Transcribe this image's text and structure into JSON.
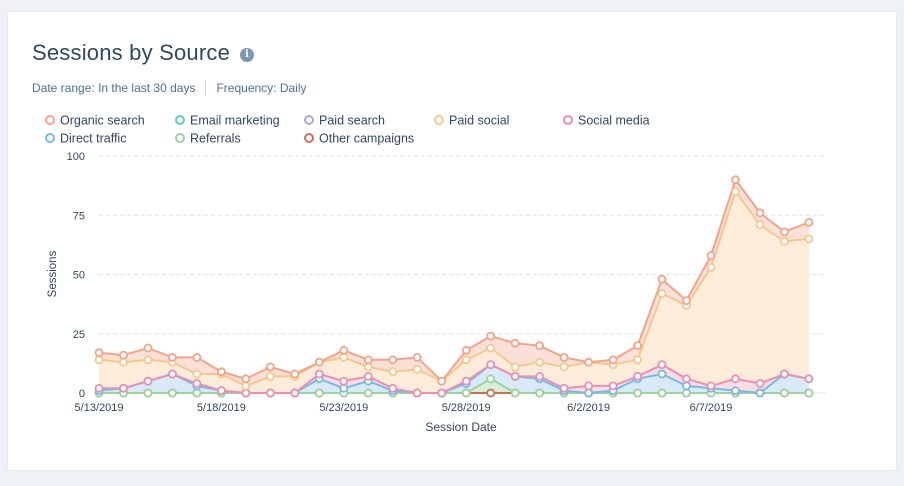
{
  "card": {
    "title": "Sessions by Source",
    "info_icon": "info-icon",
    "date_range_label": "Date range:",
    "date_range_value": "In the last 30 days",
    "frequency_label": "Frequency:",
    "frequency_value": "Daily"
  },
  "chart_data": {
    "type": "area",
    "stacked": true,
    "xlabel": "Session Date",
    "ylabel": "Sessions",
    "ylim": [
      0,
      100
    ],
    "yticks": [
      0,
      25,
      50,
      75,
      100
    ],
    "grid": true,
    "legend_position": "top-left",
    "x": [
      "5/13/2019",
      "5/14/2019",
      "5/15/2019",
      "5/16/2019",
      "5/17/2019",
      "5/18/2019",
      "5/19/2019",
      "5/20/2019",
      "5/21/2019",
      "5/22/2019",
      "5/23/2019",
      "5/24/2019",
      "5/25/2019",
      "5/26/2019",
      "5/27/2019",
      "5/28/2019",
      "5/29/2019",
      "5/30/2019",
      "5/31/2019",
      "6/1/2019",
      "6/2/2019",
      "6/3/2019",
      "6/4/2019",
      "6/5/2019",
      "6/6/2019",
      "6/7/2019",
      "6/8/2019",
      "6/9/2019",
      "6/10/2019",
      "6/11/2019"
    ],
    "xtick_labels": [
      "5/13/2019",
      "5/18/2019",
      "5/23/2019",
      "5/28/2019",
      "6/2/2019",
      "6/7/2019"
    ],
    "xtick_indices": [
      0,
      5,
      10,
      15,
      20,
      25
    ],
    "legend": [
      {
        "name": "Organic search",
        "color": "#f2a38c"
      },
      {
        "name": "Email marketing",
        "color": "#58cecb"
      },
      {
        "name": "Paid search",
        "color": "#b1a3d8"
      },
      {
        "name": "Paid social",
        "color": "#f2c892"
      },
      {
        "name": "Social media",
        "color": "#ea90b1"
      },
      {
        "name": "Direct traffic",
        "color": "#7cb8e6"
      },
      {
        "name": "Referrals",
        "color": "#9fd29e"
      },
      {
        "name": "Other campaigns",
        "color": "#c9705b"
      }
    ],
    "series": [
      {
        "name": "Other campaigns",
        "color": "#c9705b",
        "fill": "",
        "values": [
          0,
          0,
          0,
          0,
          0,
          0,
          0,
          0,
          0,
          0,
          0,
          0,
          0,
          0,
          0,
          0,
          0,
          0,
          0,
          0,
          0,
          0,
          0,
          0,
          0,
          0,
          0,
          0,
          0,
          0
        ]
      },
      {
        "name": "Referrals",
        "color": "#9fd29e",
        "fill": "#d7efd6",
        "values": [
          0,
          0,
          0,
          0,
          0,
          0,
          0,
          0,
          0,
          0,
          0,
          0,
          0,
          0,
          0,
          0,
          6,
          0,
          0,
          0,
          0,
          0,
          0,
          0,
          0,
          0,
          0,
          0,
          0,
          0
        ]
      },
      {
        "name": "Direct traffic",
        "color": "#7cb8e6",
        "fill": "#d8eaf8",
        "values": [
          1,
          2,
          5,
          8,
          3,
          1,
          0,
          0,
          0,
          6,
          2,
          5,
          1,
          0,
          0,
          4,
          6,
          7,
          6,
          1,
          0,
          1,
          6,
          8,
          3,
          2,
          1,
          0,
          8,
          6
        ]
      },
      {
        "name": "Social media",
        "color": "#ea90b1",
        "fill": "#f8dce6",
        "values": [
          1,
          0,
          0,
          0,
          1,
          0,
          0,
          0,
          0,
          2,
          3,
          2,
          1,
          0,
          0,
          1,
          0,
          0,
          1,
          1,
          3,
          2,
          1,
          4,
          3,
          1,
          5,
          4,
          0,
          0
        ]
      },
      {
        "name": "Paid social",
        "color": "#f2c892",
        "fill": "#fcecd9",
        "values": [
          12,
          11,
          9,
          5,
          4,
          7,
          3,
          7,
          7,
          5,
          10,
          4,
          7,
          10,
          5,
          9,
          7,
          4,
          6,
          9,
          10,
          9,
          7,
          30,
          31,
          50,
          79,
          67,
          56,
          59
        ]
      },
      {
        "name": "Organic search",
        "color": "#f2a38c",
        "fill": "#fbe0d8",
        "values": [
          3,
          3,
          5,
          2,
          7,
          1,
          3,
          4,
          1,
          0,
          3,
          3,
          5,
          5,
          0,
          4,
          5,
          10,
          7,
          4,
          0,
          2,
          6,
          6,
          2,
          5,
          5,
          5,
          4,
          7
        ]
      }
    ]
  }
}
